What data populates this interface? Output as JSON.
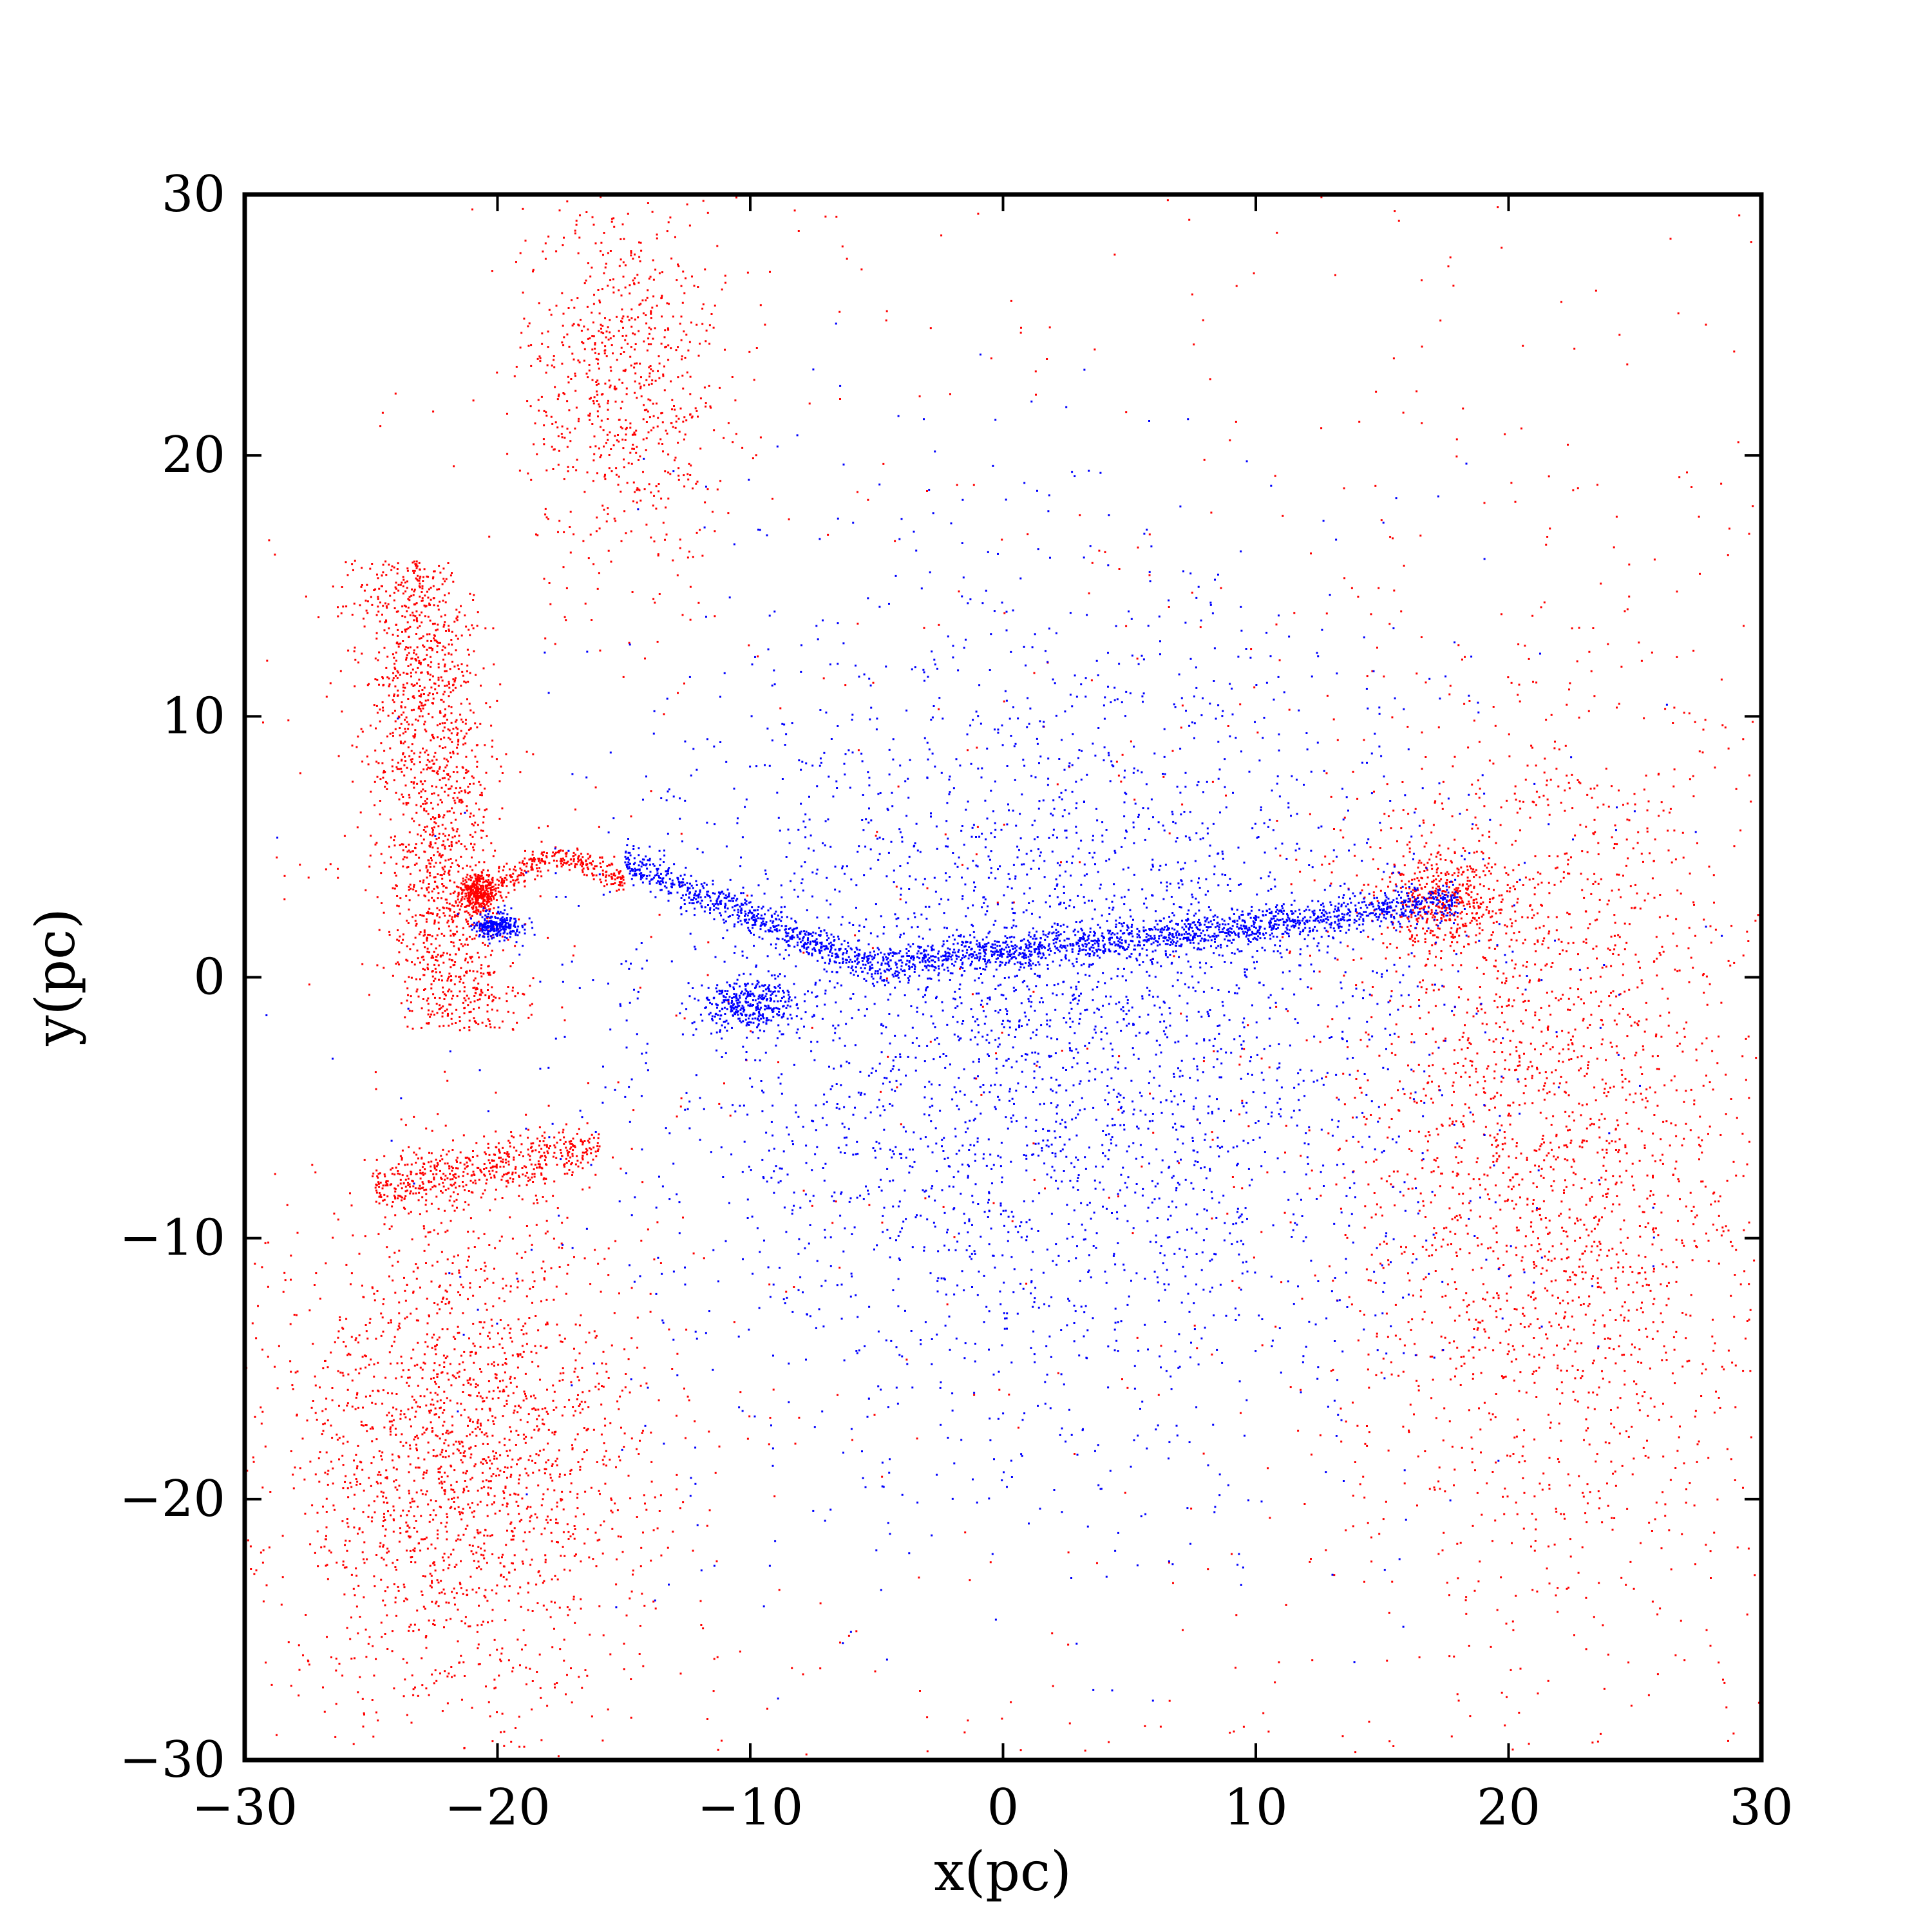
{
  "chart_data": {
    "type": "scatter",
    "title": "",
    "xlabel": "x(pc)",
    "ylabel": "y(pc)",
    "xlim": [
      -30,
      30
    ],
    "ylim": [
      -30,
      30
    ],
    "xticks": [
      -30,
      -20,
      -10,
      0,
      10,
      20,
      30
    ],
    "yticks": [
      -30,
      -20,
      -10,
      0,
      10,
      20,
      30
    ],
    "xtick_labels": [
      "−30",
      "−20",
      "−10",
      "0",
      "10",
      "20",
      "30"
    ],
    "ytick_labels": [
      "−30",
      "−20",
      "−10",
      "0",
      "10",
      "20",
      "30"
    ],
    "grid": false,
    "legend": "none",
    "colors": {
      "series_red": "#ff0000",
      "series_blue": "#0000ff",
      "axes": "#000000"
    },
    "series": [
      {
        "color": "#ff0000",
        "description_points": "diffuse population; dense clump near (-21, 3); filament from (-25, 12) down to (-21, 3); arc from (-20, 4) to (-15, 4.5); clumps near (-22, -8) and (-24, -8); dense region near (18, 3); extended cloud toward x=30",
        "components": [
          {
            "x": [
              -30,
              30
            ],
            "y": [
              -30,
              30
            ],
            "kind": "background",
            "weight": 8
          },
          {
            "x": [
              -24.5,
              -18.0
            ],
            "y": [
              -2,
              16
            ],
            "kind": "northwest-lobe",
            "weight": 18
          },
          {
            "x": [
              -19,
              -11
            ],
            "y": [
              16,
              30
            ],
            "kind": "north-plume",
            "weight": 8
          },
          {
            "x": [
              -29,
              -14
            ],
            "y": [
              -28,
              -9
            ],
            "kind": "southwest-lobe",
            "weight": 22
          },
          {
            "x": [
              -25,
              -16
            ],
            "y": [
              -9,
              -6
            ],
            "kind": "southwest-filament",
            "weight": 6
          },
          {
            "x": [
              13,
              30
            ],
            "y": [
              -24,
              12
            ],
            "kind": "east-lobe",
            "weight": 26
          },
          {
            "x": [
              15,
              20
            ],
            "y": [
              1,
              5
            ],
            "kind": "east-clump",
            "weight": 5
          },
          {
            "x": [
              -21.5,
              -20
            ],
            "y": [
              2.5,
              4
            ],
            "kind": "west-clump",
            "weight": 4
          },
          {
            "x": [
              -20,
              -15
            ],
            "y": [
              3.5,
              5
            ],
            "kind": "arc",
            "weight": 3
          }
        ]
      },
      {
        "color": "#0000ff",
        "description_points": "filament from (-15, 4.5) through (-10, 2), (-5, 0.5), (0, 1), (10, 2) to (18, 3); diffuse cloud around the filament from x=-15 to 18 and y=-18 to 15; small clump near (-20, 2)",
        "components": [
          {
            "x": [
              -15,
              18
            ],
            "y": [
              -18,
              15
            ],
            "kind": "central-cloud",
            "weight": 40
          },
          {
            "x": [
              -15,
              18
            ],
            "y": [
              0,
              4.5
            ],
            "kind": "filament",
            "weight": 25
          },
          {
            "x": [
              -21,
              -19
            ],
            "y": [
              1.5,
              2.5
            ],
            "kind": "west-clump",
            "weight": 3
          },
          {
            "x": [
              -12,
              -8
            ],
            "y": [
              -2,
              0
            ],
            "kind": "southwest-branch",
            "weight": 4
          }
        ]
      }
    ]
  }
}
